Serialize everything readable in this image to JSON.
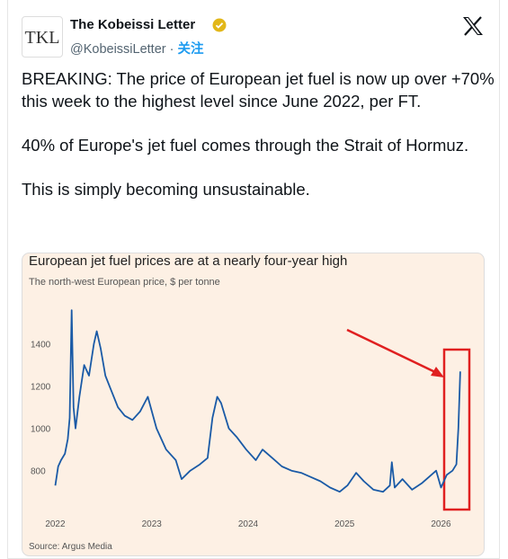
{
  "tweet": {
    "logo": "TKL",
    "name": "The Kobeissi Letter",
    "handle": "@KobeissiLetter",
    "separator": "·",
    "follow": "关注",
    "paragraphs": [
      "BREAKING: The price of European jet fuel is now up over +70% this week to the highest level since June 2022, per FT.",
      "40% of Europe's jet fuel comes through the Strait of Hormuz.",
      "This is simply becoming unsustainable."
    ]
  },
  "chart_data": {
    "type": "line",
    "title": "European jet fuel prices are at a nearly four-year high",
    "subtitle": "The north-west European price, $ per tonne",
    "source": "Source: Argus Media",
    "x": [
      2022.0,
      2022.03,
      2022.06,
      2022.1,
      2022.13,
      2022.15,
      2022.17,
      2022.19,
      2022.21,
      2022.25,
      2022.3,
      2022.35,
      2022.4,
      2022.43,
      2022.47,
      2022.52,
      2022.58,
      2022.65,
      2022.72,
      2022.8,
      2022.88,
      2022.96,
      2023.05,
      2023.15,
      2023.25,
      2023.31,
      2023.4,
      2023.5,
      2023.58,
      2023.63,
      2023.68,
      2023.72,
      2023.8,
      2023.88,
      2023.98,
      2024.08,
      2024.15,
      2024.25,
      2024.35,
      2024.45,
      2024.55,
      2024.65,
      2024.75,
      2024.85,
      2024.95,
      2025.03,
      2025.12,
      2025.2,
      2025.3,
      2025.4,
      2025.47,
      2025.49,
      2025.52,
      2025.6,
      2025.7,
      2025.8,
      2025.9,
      2025.95,
      2026.0,
      2026.06,
      2026.12,
      2026.16,
      2026.18,
      2026.2
    ],
    "values": [
      730,
      820,
      850,
      880,
      950,
      1050,
      1560,
      1100,
      1000,
      1150,
      1300,
      1250,
      1400,
      1460,
      1380,
      1250,
      1180,
      1100,
      1060,
      1040,
      1080,
      1150,
      1000,
      900,
      850,
      760,
      800,
      830,
      860,
      1050,
      1150,
      1120,
      1000,
      960,
      900,
      850,
      900,
      860,
      820,
      800,
      790,
      770,
      750,
      720,
      700,
      730,
      790,
      750,
      710,
      700,
      730,
      840,
      720,
      760,
      710,
      740,
      780,
      800,
      720,
      780,
      800,
      830,
      1000,
      1270
    ],
    "color": "#1a5aa6",
    "xlim": [
      2021.8,
      2026.35
    ],
    "xticks": [
      2022,
      2023,
      2024,
      2025,
      2026
    ],
    "ylim": [
      650,
      1620
    ],
    "yticks": [
      800,
      1000,
      1200,
      1400
    ]
  }
}
